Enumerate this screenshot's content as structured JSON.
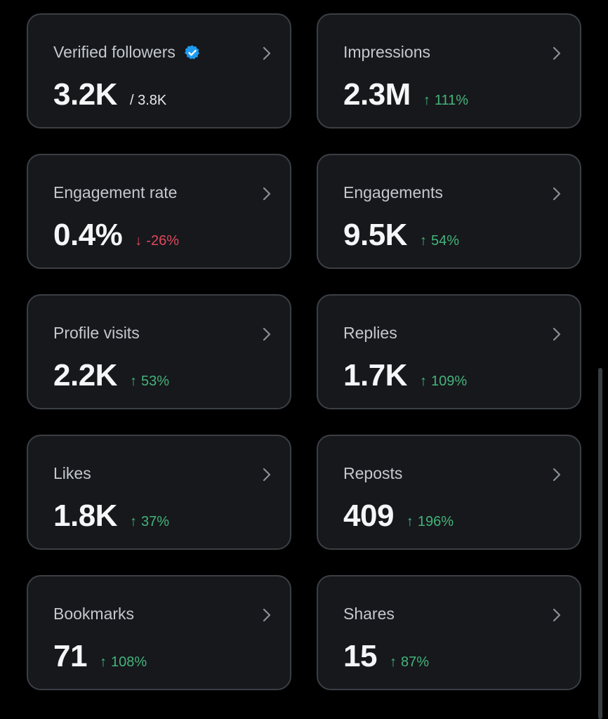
{
  "colors": {
    "background": "#000000",
    "card": "#16181c",
    "card_border": "#3b3f44",
    "positive": "#45b37a",
    "negative": "#e0485a",
    "verified_badge": "#1d9bf0"
  },
  "icons": {
    "chevron": "chevron-right-icon",
    "verified": "verified-badge-icon",
    "up": "arrow-up-icon",
    "down": "arrow-down-icon"
  },
  "metrics": [
    {
      "label": "Verified followers",
      "value": "3.2K",
      "secondary": "/ 3.8K"
    },
    {
      "label": "Impressions",
      "value": "2.3M",
      "delta_arrow": "↑",
      "delta": "111%"
    },
    {
      "label": "Engagement rate",
      "value": "0.4%",
      "delta_arrow": "↓",
      "delta": "-26%"
    },
    {
      "label": "Engagements",
      "value": "9.5K",
      "delta_arrow": "↑",
      "delta": "54%"
    },
    {
      "label": "Profile visits",
      "value": "2.2K",
      "delta_arrow": "↑",
      "delta": "53%"
    },
    {
      "label": "Replies",
      "value": "1.7K",
      "delta_arrow": "↑",
      "delta": "109%"
    },
    {
      "label": "Likes",
      "value": "1.8K",
      "delta_arrow": "↑",
      "delta": "37%"
    },
    {
      "label": "Reposts",
      "value": "409",
      "delta_arrow": "↑",
      "delta": "196%"
    },
    {
      "label": "Bookmarks",
      "value": "71",
      "delta_arrow": "↑",
      "delta": "108%"
    },
    {
      "label": "Shares",
      "value": "15",
      "delta_arrow": "↑",
      "delta": "87%"
    }
  ]
}
